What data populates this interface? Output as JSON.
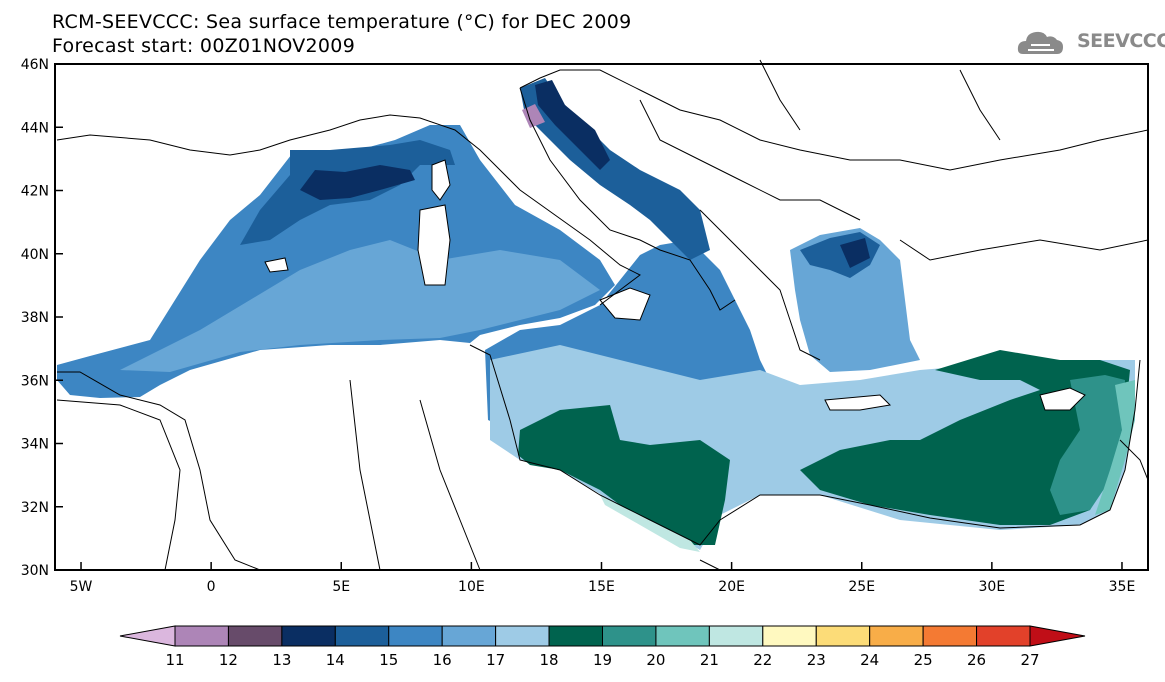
{
  "title": {
    "line1": "RCM-SEEVCCC: Sea surface temperature (°C) for DEC 2009",
    "line2": "Forecast start: 00Z01NOV2009"
  },
  "logo": {
    "text": "SEEVCCC",
    "icon": "cloud-icon"
  },
  "map": {
    "lon_range": [
      -6,
      36
    ],
    "lat_range": [
      30,
      46
    ],
    "y_ticks": [
      "46N",
      "44N",
      "42N",
      "40N",
      "38N",
      "36N",
      "34N",
      "32N",
      "30N"
    ],
    "x_ticks": [
      "5W",
      "0",
      "5E",
      "10E",
      "15E",
      "20E",
      "25E",
      "30E",
      "35E"
    ]
  },
  "colorbar": {
    "labels": [
      "11",
      "12",
      "13",
      "14",
      "15",
      "16",
      "17",
      "18",
      "19",
      "20",
      "21",
      "22",
      "23",
      "24",
      "25",
      "26",
      "27"
    ],
    "colors": [
      "#dbb7de",
      "#ad85b7",
      "#674b6a",
      "#0a2e62",
      "#1c5f9a",
      "#3d86c3",
      "#67a6d6",
      "#9ecbe6",
      "#00634e",
      "#2e928a",
      "#6fc5bc",
      "#bfe7e2",
      "#fff9c0",
      "#fcdc78",
      "#f8ad48",
      "#f47a33",
      "#e2412a",
      "#c00e17"
    ]
  }
}
